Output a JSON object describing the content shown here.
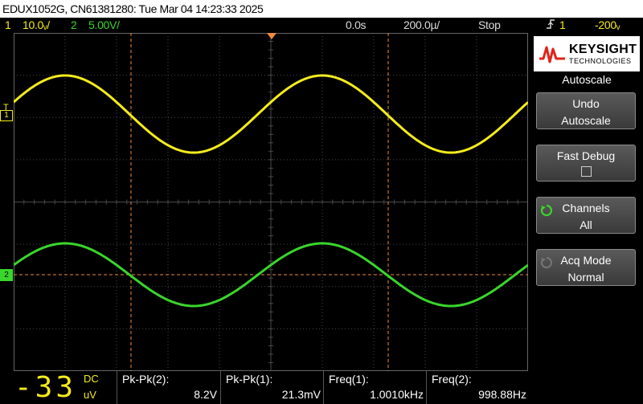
{
  "title": "EDUX1052G, CN61381280: Tue Mar 04 14:23:33 2025",
  "status": {
    "ch1_num": "1",
    "ch1_scale": "10.0ᵥ/",
    "ch2_num": "2",
    "ch2_scale": "5.00V/",
    "time_offset": "0.0s",
    "time_scale": "200.0µ/",
    "run_state": "Stop",
    "trigger_icon": "trigger-edge-icon",
    "trig_source": "1",
    "trig_level": "-200ᵥ"
  },
  "colors": {
    "ch1": "#f4ec1c",
    "ch2": "#39d62b",
    "cursor": "#f08a3c",
    "grid": "#4a4a4a"
  },
  "channel_markers": {
    "ch1": "1",
    "ch2": "2",
    "trigger": "T"
  },
  "logo": {
    "brand": "KEYSIGHT",
    "sub": "TECHNOLOGIES"
  },
  "menu": {
    "title": "Autoscale",
    "softkeys": [
      {
        "line1": "Undo",
        "line2": "Autoscale"
      },
      {
        "line1": "Fast Debug",
        "line2": ""
      },
      {
        "line1": "Channels",
        "line2": "All"
      },
      {
        "line1": "Acq Mode",
        "line2": "Normal"
      }
    ]
  },
  "bottom": {
    "digits": "-33",
    "coupling": "DC",
    "unit": "uV",
    "measurements": [
      {
        "label": "Pk-Pk(2):",
        "value": "8.2V"
      },
      {
        "label": "Pk-Pk(1):",
        "value": "21.3mV"
      },
      {
        "label": "Freq(1):",
        "value": "1.0010kHz"
      },
      {
        "label": "Freq(2):",
        "value": "998.88Hz"
      }
    ]
  }
}
